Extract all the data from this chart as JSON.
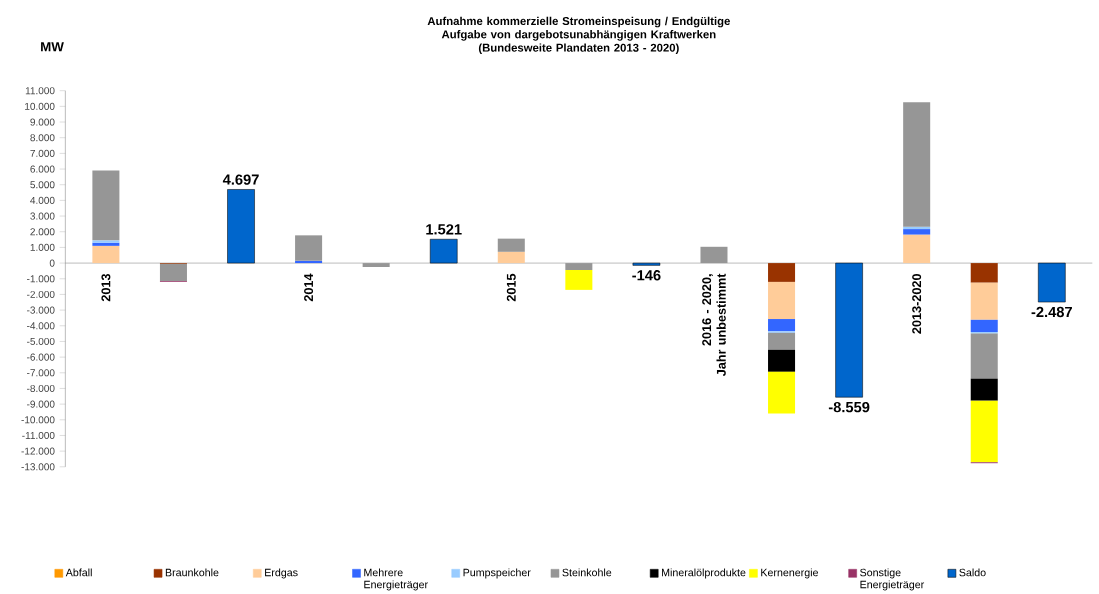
{
  "chart_data": {
    "type": "bar",
    "stacked": true,
    "title": "Aufnahme kommerzielle Stromeinspeisung / Endgültige Aufgabe von dargebotsunabhängigen Kraftwerken",
    "subtitle": "(Bundesweite Plandaten 2013 - 2020)",
    "ylabel": "MW",
    "categories": [
      "2013",
      null,
      null,
      "2014",
      null,
      null,
      "2015",
      null,
      null,
      "2016 - 2020, Jahr unbestimmt",
      null,
      null,
      "2013-2020",
      null,
      null
    ],
    "series": [
      {
        "name": "Abfall",
        "color": "#ff9900",
        "values": [
          null,
          null,
          null,
          null,
          null,
          null,
          null,
          null,
          null,
          null,
          null,
          null,
          null,
          null,
          null
        ]
      },
      {
        "name": "Braunkohle",
        "color": "#993300",
        "values": [
          null,
          -50,
          null,
          null,
          null,
          null,
          null,
          null,
          null,
          null,
          -1200,
          null,
          null,
          -1250,
          null
        ]
      },
      {
        "name": "Erdgas",
        "color": "#ffcc99",
        "values": [
          1100,
          null,
          null,
          null,
          null,
          null,
          720,
          null,
          null,
          null,
          -2370,
          null,
          1820,
          -2370,
          null
        ]
      },
      {
        "name": "Mehrere Energieträger",
        "color": "#3366ff",
        "values": [
          200,
          null,
          null,
          150,
          null,
          null,
          null,
          null,
          null,
          null,
          -780,
          null,
          350,
          -780,
          null
        ]
      },
      {
        "name": "Pumpspeicher",
        "color": "#99ccff",
        "values": [
          150,
          null,
          null,
          null,
          null,
          null,
          null,
          null,
          null,
          null,
          -100,
          null,
          150,
          -100,
          null
        ]
      },
      {
        "name": "Steinkohle",
        "color": "#969696",
        "values": [
          4450,
          -1100,
          null,
          1620,
          -250,
          null,
          840,
          -440,
          null,
          1040,
          -1080,
          null,
          7950,
          -2870,
          null
        ]
      },
      {
        "name": "Mineralölprodukte",
        "color": "#000000",
        "values": [
          null,
          null,
          null,
          null,
          null,
          null,
          null,
          null,
          null,
          null,
          -1410,
          null,
          null,
          -1410,
          null
        ]
      },
      {
        "name": "Kernenergie",
        "color": "#ffff00",
        "values": [
          null,
          null,
          null,
          null,
          null,
          null,
          null,
          -1270,
          null,
          null,
          -2660,
          null,
          null,
          -3930,
          null
        ]
      },
      {
        "name": "Sonstige Energieträger",
        "color": "#993366",
        "values": [
          null,
          -50,
          null,
          null,
          null,
          null,
          null,
          null,
          null,
          null,
          null,
          null,
          null,
          -60,
          null
        ]
      },
      {
        "name": "Saldo",
        "color": "#0066cc",
        "values": [
          null,
          null,
          4697,
          null,
          null,
          1521,
          null,
          null,
          -146,
          null,
          null,
          -8559,
          null,
          null,
          -2487
        ],
        "value_labels": [
          null,
          null,
          "4.697",
          null,
          null,
          "1.521",
          null,
          null,
          "-146",
          null,
          null,
          "-8.559",
          null,
          null,
          "-2.487"
        ]
      }
    ],
    "ylim": [
      -13000,
      11000
    ],
    "yticks": [
      {
        "value": -13000,
        "label": "-13.000"
      },
      {
        "value": -12000,
        "label": "-12.000"
      },
      {
        "value": -11000,
        "label": "-11.000"
      },
      {
        "value": -10000,
        "label": "-10.000"
      },
      {
        "value": -9000,
        "label": "-9.000"
      },
      {
        "value": -8000,
        "label": "-8.000"
      },
      {
        "value": -7000,
        "label": "-7.000"
      },
      {
        "value": -6000,
        "label": "-6.000"
      },
      {
        "value": -5000,
        "label": "-5.000"
      },
      {
        "value": -4000,
        "label": "-4.000"
      },
      {
        "value": -3000,
        "label": "-3.000"
      },
      {
        "value": -2000,
        "label": "-2.000"
      },
      {
        "value": -1000,
        "label": "-1.000"
      },
      0,
      {
        "value": 1000,
        "label": "1.000"
      },
      {
        "value": 2000,
        "label": "2.000"
      },
      {
        "value": 3000,
        "label": "3.000"
      },
      {
        "value": 4000,
        "label": "4.000"
      },
      {
        "value": 5000,
        "label": "5.000"
      },
      {
        "value": 6000,
        "label": "6.000"
      },
      {
        "value": 7000,
        "label": "7.000"
      },
      {
        "value": 8000,
        "label": "8.000"
      },
      {
        "value": 9000,
        "label": "9.000"
      },
      {
        "value": 10000,
        "label": "10.000"
      },
      {
        "value": 11000,
        "label": "11.000"
      }
    ],
    "legend": "bottom"
  }
}
